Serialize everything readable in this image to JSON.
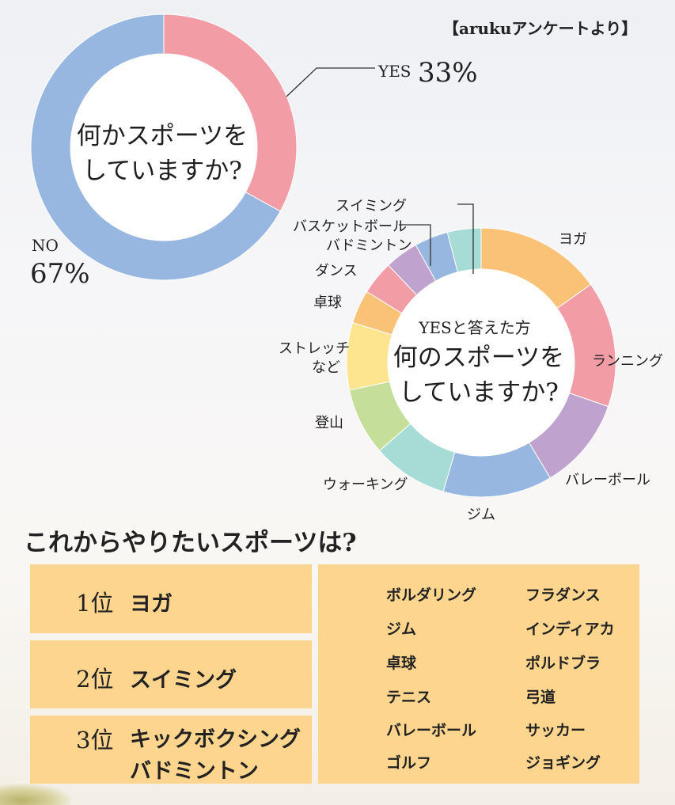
{
  "source_note": "【arukuアンケートより】",
  "chart_data": [
    {
      "type": "pie",
      "style": "donut",
      "title": "何かスポーツをしていますか?",
      "title_lines": [
        "何かスポーツを",
        "していますか?"
      ],
      "categories": [
        "YES",
        "NO"
      ],
      "values": [
        33,
        67
      ],
      "value_labels": [
        "33%",
        "67%"
      ],
      "colors": [
        "#f29ca6",
        "#97b7e0"
      ]
    },
    {
      "type": "pie",
      "style": "donut",
      "subtitle": "YESと答えた方",
      "title": "何のスポーツをしていますか?",
      "title_lines": [
        "何のスポーツを",
        "していますか?"
      ],
      "categories": [
        "ヨガ",
        "ランニング",
        "バレーボール",
        "ジム",
        "ウォーキング",
        "登山",
        "ストレッチ など",
        "卓球",
        "ダンス",
        "バドミントン",
        "バスケットボール",
        "スイミング"
      ],
      "label_lines": [
        [
          "ヨガ"
        ],
        [
          "ランニング"
        ],
        [
          "バレーボール"
        ],
        [
          "ジム"
        ],
        [
          "ウォーキング"
        ],
        [
          "登山"
        ],
        [
          "ストレッチ",
          "など"
        ],
        [
          "卓球"
        ],
        [
          "ダンス"
        ],
        [
          "バドミントン"
        ],
        [
          "バスケットボール"
        ],
        [
          "スイミング"
        ]
      ],
      "values": [
        15,
        15,
        11,
        13,
        9,
        8,
        8,
        4,
        4,
        4,
        4,
        4
      ],
      "colors": [
        "#f9c276",
        "#f29ca6",
        "#c0a2cf",
        "#97b7e0",
        "#a6dcd5",
        "#c5de9a",
        "#fde58f",
        "#f9c276",
        "#f29ca6",
        "#c0a2cf",
        "#97b7e0",
        "#a6dcd5"
      ]
    }
  ],
  "ranking": {
    "title": "これからやりたいスポーツは?",
    "items": [
      {
        "position": "1位",
        "sports": [
          "ヨガ"
        ]
      },
      {
        "position": "2位",
        "sports": [
          "スイミング"
        ]
      },
      {
        "position": "3位",
        "sports": [
          "キックボクシング",
          "バドミントン"
        ]
      }
    ],
    "others_left": [
      "ボルダリング",
      "ジム",
      "卓球",
      "テニス",
      "バレーボール",
      "ゴルフ"
    ],
    "others_right": [
      "フラダンス",
      "インディアカ",
      "ポルドブラ",
      "弓道",
      "サッカー",
      "ジョギング"
    ]
  }
}
